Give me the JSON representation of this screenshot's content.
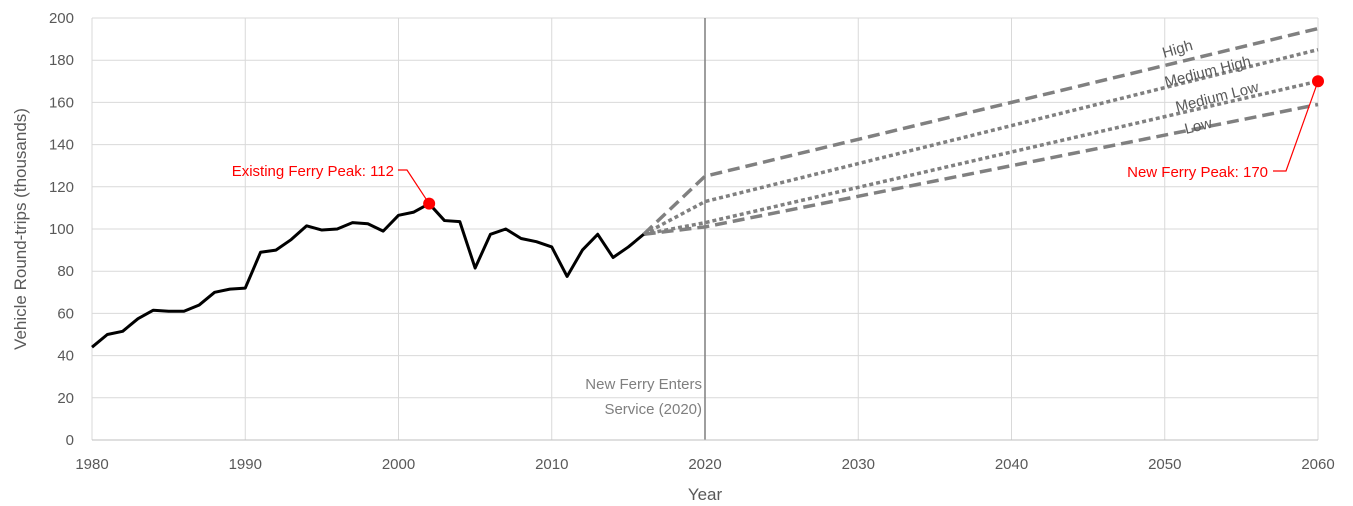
{
  "chart_data": {
    "type": "line",
    "title": "",
    "xlabel": "Year",
    "ylabel": "Vehicle Round-trips (thousands)",
    "xlim": [
      1980,
      2060
    ],
    "ylim": [
      0,
      200
    ],
    "x_ticks": [
      1980,
      1990,
      2000,
      2010,
      2020,
      2030,
      2040,
      2050,
      2060
    ],
    "y_ticks": [
      0,
      20,
      40,
      60,
      80,
      100,
      120,
      140,
      160,
      180,
      200
    ],
    "grid": true,
    "historical": {
      "color": "#000000",
      "x": [
        1980,
        1981,
        1982,
        1983,
        1984,
        1985,
        1986,
        1987,
        1988,
        1989,
        1990,
        1991,
        1992,
        1993,
        1994,
        1995,
        1996,
        1997,
        1998,
        1999,
        2000,
        2001,
        2002,
        2003,
        2004,
        2005,
        2006,
        2007,
        2008,
        2009,
        2010,
        2011,
        2012,
        2013,
        2014,
        2015,
        2016
      ],
      "y": [
        44,
        50,
        51.5,
        57.5,
        61.5,
        61,
        61,
        64,
        70,
        71.5,
        72,
        89,
        90,
        95,
        101.5,
        99.5,
        100,
        103,
        102.5,
        99,
        106.5,
        108,
        112,
        104,
        103.5,
        81.5,
        97.5,
        100,
        95.5,
        94,
        91.5,
        77.5,
        90,
        97.5,
        86.5,
        91.5,
        97.5
      ]
    },
    "scenarios": [
      {
        "name": "High",
        "style": "dashed",
        "color": "#808080",
        "x": [
          2016,
          2020,
          2060
        ],
        "y": [
          97.5,
          125,
          195
        ]
      },
      {
        "name": "Medium High",
        "style": "dotted",
        "color": "#808080",
        "x": [
          2016,
          2020,
          2060
        ],
        "y": [
          97.5,
          113,
          185
        ]
      },
      {
        "name": "Medium Low",
        "style": "dotted",
        "color": "#808080",
        "x": [
          2016,
          2020,
          2060
        ],
        "y": [
          97.5,
          103,
          170
        ]
      },
      {
        "name": "Low",
        "style": "dashed",
        "color": "#808080",
        "x": [
          2016,
          2020,
          2060
        ],
        "y": [
          97.5,
          101,
          159
        ]
      }
    ],
    "scenario_labels": [
      "High",
      "Medium High",
      "Medium Low",
      "Low"
    ],
    "annotations": {
      "existing_peak": {
        "label": "Existing Ferry Peak: 112",
        "x": 2002,
        "y": 112,
        "color": "#ff0000"
      },
      "new_peak": {
        "label": "New Ferry Peak: 170",
        "x": 2060,
        "y": 170,
        "color": "#ff0000"
      },
      "event_line": {
        "x": 2020,
        "label_line1": "New Ferry Enters",
        "label_line2": "Service (2020)",
        "color": "#808080"
      }
    }
  }
}
